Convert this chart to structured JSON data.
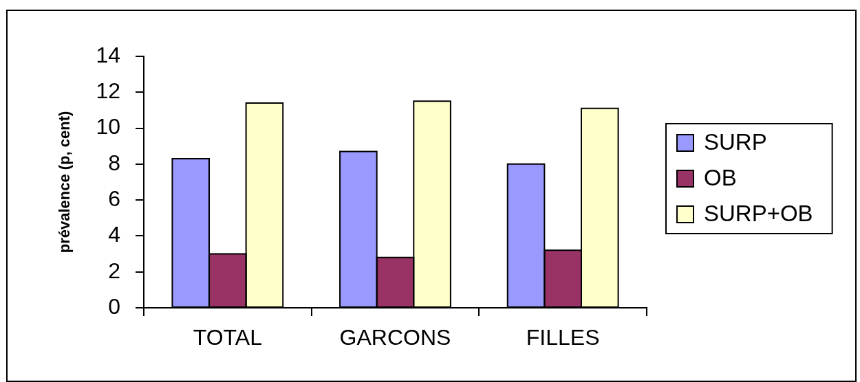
{
  "chart_data": {
    "type": "bar",
    "ylabel": "prévalence (p, cent)",
    "categories": [
      "TOTAL",
      "GARCONS",
      "FILLES"
    ],
    "series": [
      {
        "name": "SURP",
        "color": "#9999ff",
        "values": [
          8.3,
          8.7,
          8.0
        ]
      },
      {
        "name": "OB",
        "color": "#993366",
        "values": [
          3.0,
          2.8,
          3.2
        ]
      },
      {
        "name": "SURP+OB",
        "color": "#ffffcc",
        "values": [
          11.4,
          11.5,
          11.1
        ]
      }
    ],
    "ylim": [
      0,
      14
    ],
    "yticks": [
      0,
      2,
      4,
      6,
      8,
      10,
      12,
      14
    ],
    "legend": "right"
  }
}
